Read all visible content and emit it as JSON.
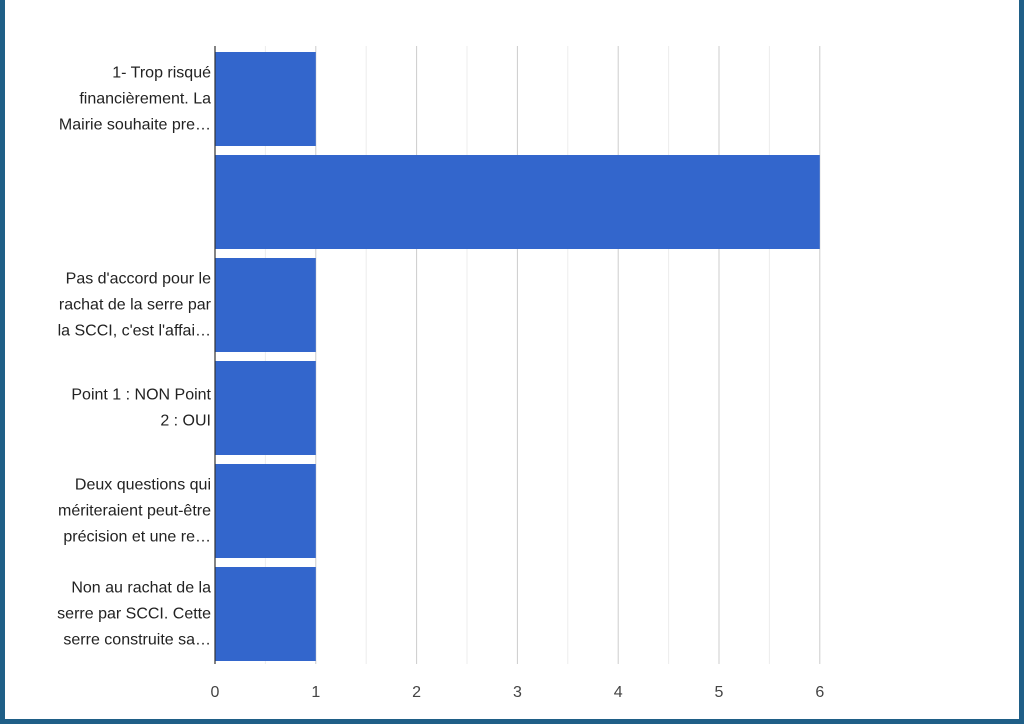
{
  "chart_data": {
    "type": "bar",
    "orientation": "horizontal",
    "categories": [
      [
        "1- Trop risqué",
        "financièrement. La",
        "Mairie souhaite pre…"
      ],
      [],
      [
        "Pas d'accord pour le",
        "rachat de la serre par",
        "la SCCI, c'est l'affai…"
      ],
      [
        "Point 1 : NON Point",
        "2 : OUI"
      ],
      [
        "Deux questions qui",
        "mériteraient peut-être",
        "précision et une re…"
      ],
      [
        "Non au rachat de la",
        "serre par SCCI. Cette",
        "serre construite sa…"
      ]
    ],
    "values": [
      1,
      6,
      1,
      1,
      1,
      1
    ],
    "xlim": [
      0,
      6
    ],
    "xticks": [
      "0",
      "1",
      "2",
      "3",
      "4",
      "5",
      "6"
    ],
    "grid": true,
    "bar_color": "#3366cc",
    "title": "",
    "xlabel": "",
    "ylabel": ""
  }
}
